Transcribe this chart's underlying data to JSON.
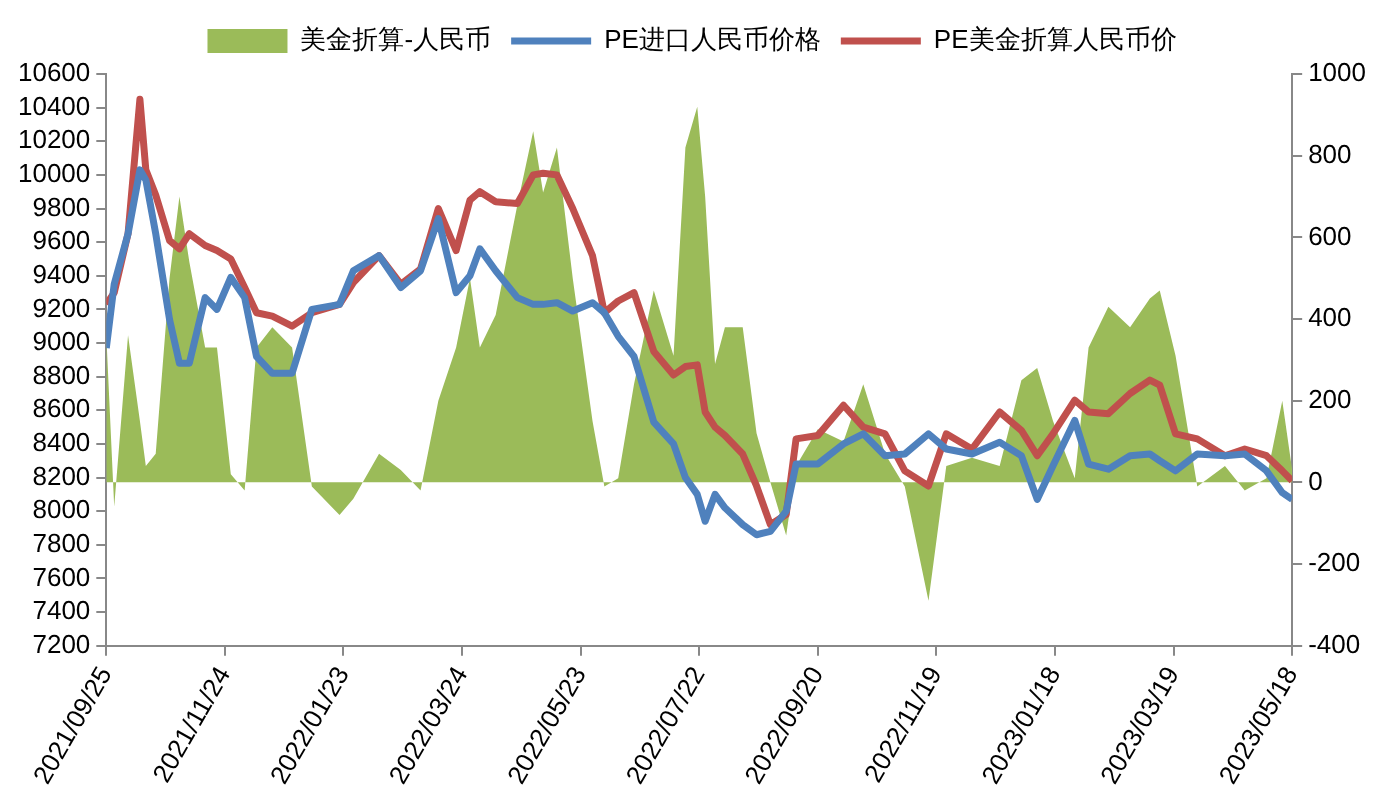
{
  "chart_data": {
    "type": "line",
    "x": [
      "2021-09-25",
      "2021-09-29",
      "2021-10-06",
      "2021-10-12",
      "2021-10-15",
      "2021-10-20",
      "2021-10-27",
      "2021-11-01",
      "2021-11-06",
      "2021-11-14",
      "2021-11-20",
      "2021-11-27",
      "2021-12-04",
      "2021-12-10",
      "2021-12-18",
      "2021-12-28",
      "2022-01-07",
      "2022-01-21",
      "2022-01-28",
      "2022-02-10",
      "2022-02-21",
      "2022-03-03",
      "2022-03-12",
      "2022-03-21",
      "2022-03-28",
      "2022-04-02",
      "2022-04-10",
      "2022-04-21",
      "2022-04-29",
      "2022-05-04",
      "2022-05-11",
      "2022-05-19",
      "2022-05-29",
      "2022-06-04",
      "2022-06-11",
      "2022-06-19",
      "2022-06-29",
      "2022-07-09",
      "2022-07-15",
      "2022-07-21",
      "2022-07-25",
      "2022-07-30",
      "2022-08-04",
      "2022-08-13",
      "2022-08-20",
      "2022-08-27",
      "2022-09-04",
      "2022-09-09",
      "2022-09-20",
      "2022-10-03",
      "2022-10-13",
      "2022-10-24",
      "2022-11-03",
      "2022-11-15",
      "2022-11-24",
      "2022-12-07",
      "2022-12-21",
      "2023-01-01",
      "2023-01-09",
      "2023-01-17",
      "2023-01-28",
      "2023-02-04",
      "2023-02-14",
      "2023-02-25",
      "2023-03-07",
      "2023-03-12",
      "2023-03-20",
      "2023-03-31",
      "2023-04-14",
      "2023-04-24",
      "2023-05-05",
      "2023-05-13",
      "2023-05-18"
    ],
    "series": [
      {
        "name": "美金折算-人民币",
        "type": "area",
        "axis": "y2",
        "color": "#9bbb59",
        "values": [
          360,
          -60,
          360,
          150,
          40,
          70,
          500,
          700,
          540,
          330,
          330,
          20,
          -20,
          330,
          380,
          330,
          -10,
          -80,
          -40,
          70,
          30,
          -20,
          200,
          330,
          500,
          330,
          410,
          680,
          860,
          710,
          820,
          500,
          150,
          -10,
          10,
          240,
          470,
          310,
          820,
          920,
          700,
          290,
          380,
          380,
          120,
          0,
          -130,
          40,
          130,
          100,
          240,
          70,
          -10,
          -290,
          40,
          60,
          40,
          250,
          280,
          150,
          10,
          330,
          430,
          380,
          450,
          470,
          310,
          -10,
          40,
          -20,
          10,
          200,
          30
        ]
      },
      {
        "name": "PE进口人民币价格",
        "type": "line",
        "color": "#4f81bd",
        "values": [
          8970,
          9350,
          9650,
          10030,
          9970,
          9650,
          9140,
          8880,
          8880,
          9270,
          9200,
          9390,
          9270,
          8920,
          8820,
          8820,
          9200,
          9230,
          9430,
          9520,
          9330,
          9430,
          9740,
          9300,
          9400,
          9560,
          9430,
          9270,
          9230,
          9230,
          9240,
          9190,
          9240,
          9180,
          9040,
          8920,
          8530,
          8400,
          8200,
          8100,
          7940,
          8100,
          8020,
          7920,
          7860,
          7880,
          8000,
          8280,
          8280,
          8400,
          8460,
          8330,
          8340,
          8460,
          8370,
          8340,
          8410,
          8330,
          8070,
          8270,
          8540,
          8280,
          8250,
          8330,
          8340,
          8300,
          8240,
          8340,
          8330,
          8340,
          8240,
          8110,
          8070
        ]
      },
      {
        "name": "PE美金折算人民币价",
        "type": "line",
        "color": "#c0504d",
        "values": [
          9230,
          9300,
          9650,
          10450,
          10030,
          9880,
          9610,
          9560,
          9650,
          9580,
          9550,
          9500,
          9330,
          9180,
          9160,
          9100,
          9180,
          9230,
          9360,
          9520,
          9350,
          9440,
          9800,
          9550,
          9850,
          9900,
          9840,
          9830,
          10000,
          10010,
          10000,
          9800,
          9520,
          9180,
          9250,
          9300,
          8950,
          8810,
          8860,
          8870,
          8590,
          8500,
          8450,
          8340,
          8150,
          7920,
          7980,
          8430,
          8450,
          8630,
          8500,
          8460,
          8240,
          8150,
          8460,
          8370,
          8590,
          8480,
          8330,
          8460,
          8660,
          8590,
          8580,
          8700,
          8780,
          8750,
          8460,
          8430,
          8330,
          8370,
          8330,
          8240,
          8180
        ]
      }
    ],
    "xlim": [
      "2021-09-25",
      "2023-05-18"
    ],
    "xticks": [
      {
        "value": "2021-09-25",
        "label": "2021/09/25"
      },
      {
        "value": "2021-11-24",
        "label": "2021/11/24"
      },
      {
        "value": "2022-01-23",
        "label": "2022/01/23"
      },
      {
        "value": "2022-03-24",
        "label": "2022/03/24"
      },
      {
        "value": "2022-05-23",
        "label": "2022/05/23"
      },
      {
        "value": "2022-07-22",
        "label": "2022/07/22"
      },
      {
        "value": "2022-09-20",
        "label": "2022/09/20"
      },
      {
        "value": "2022-11-19",
        "label": "2022/11/19"
      },
      {
        "value": "2023-01-18",
        "label": "2023/01/18"
      },
      {
        "value": "2023-03-19",
        "label": "2023/03/19"
      },
      {
        "value": "2023-05-18",
        "label": "2023/05/18"
      }
    ],
    "ylim": [
      7200,
      10600
    ],
    "yticks": [
      7200,
      7400,
      7600,
      7800,
      8000,
      8200,
      8400,
      8600,
      8800,
      9000,
      9200,
      9400,
      9600,
      9800,
      10000,
      10200,
      10400,
      10600
    ],
    "y2lim": [
      -400,
      1000
    ],
    "y2ticks": [
      -400,
      -200,
      0,
      200,
      400,
      600,
      800,
      1000
    ],
    "legend": "top",
    "grid": false,
    "marker": "none"
  }
}
